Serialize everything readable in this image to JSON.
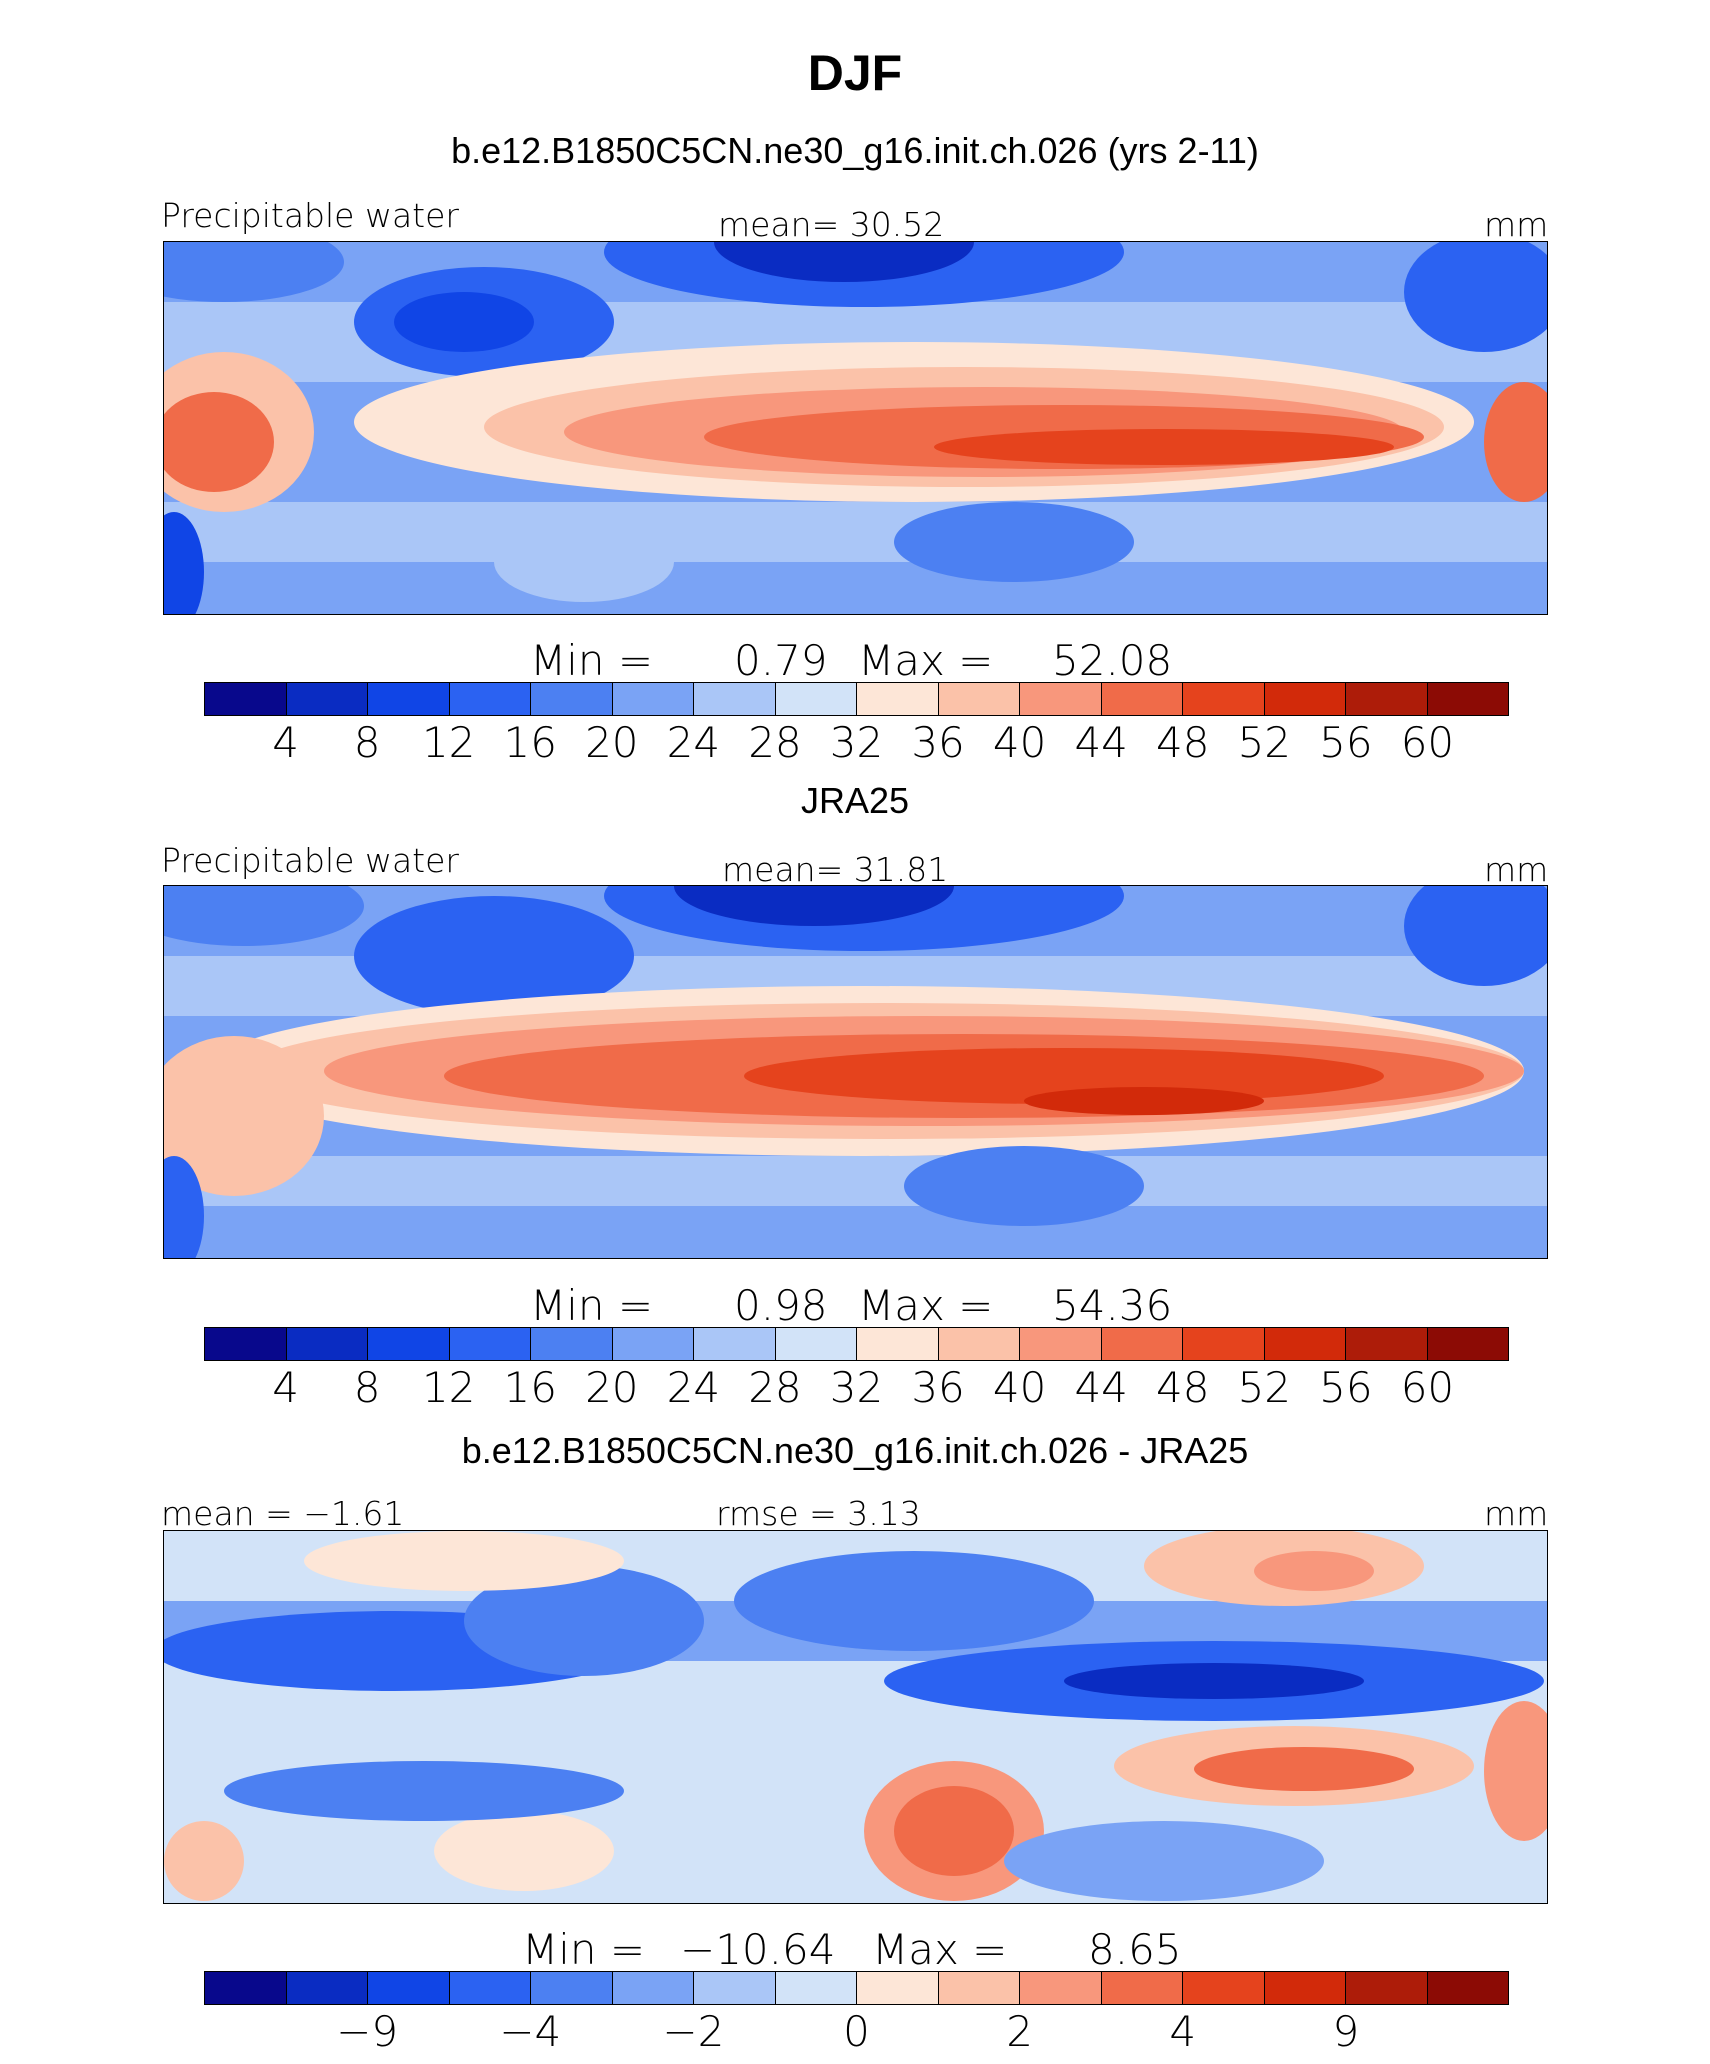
{
  "figure": {
    "title": "DJF"
  },
  "palette": [
    "#08088c",
    "#0a2cc2",
    "#1045e6",
    "#2b62f2",
    "#4c80f2",
    "#7aa3f5",
    "#aac6f7",
    "#d2e3f8",
    "#fde6d7",
    "#fbc2a9",
    "#f8977c",
    "#f06b49",
    "#e5431d",
    "#d22a0a",
    "#ad1c09",
    "#8c0b05"
  ],
  "chart_data": [
    {
      "type": "heatmap",
      "panel_title": "b.e12.B1850C5CN.ne30_g16.init.ch.026 (yrs 2-11)",
      "left_label": "Precipitable water",
      "center_label": "mean=   30.52",
      "units": "mm",
      "min_label": "Min  =",
      "min_value": "0.79",
      "max_label": "Max  =",
      "max_value": "52.08",
      "colorbar_ticks": [
        "4",
        "8",
        "12",
        "16",
        "20",
        "24",
        "28",
        "32",
        "36",
        "40",
        "44",
        "48",
        "52",
        "56",
        "60"
      ]
    },
    {
      "type": "heatmap",
      "panel_title": "JRA25",
      "left_label": "Precipitable water",
      "center_label": "mean=   31.81",
      "units": "mm",
      "min_label": "Min  =",
      "min_value": "0.98",
      "max_label": "Max  =",
      "max_value": "54.36",
      "colorbar_ticks": [
        "4",
        "8",
        "12",
        "16",
        "20",
        "24",
        "28",
        "32",
        "36",
        "40",
        "44",
        "48",
        "52",
        "56",
        "60"
      ]
    },
    {
      "type": "heatmap",
      "panel_title": "b.e12.B1850C5CN.ne30_g16.init.ch.026 - JRA25",
      "left_label": "mean =   −1.61",
      "center_label": "rmse =     3.13",
      "units": "mm",
      "min_label": "Min  =",
      "min_value": "−10.64",
      "max_label": "Max  =",
      "max_value": "8.65",
      "colorbar_ticks": [
        "−9",
        "−4",
        "−2",
        "0",
        "2",
        "4",
        "9"
      ]
    }
  ]
}
